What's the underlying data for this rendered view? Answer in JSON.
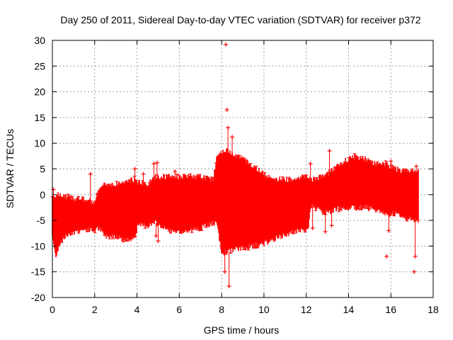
{
  "chart_data": {
    "type": "scatter",
    "title": "Day 250 of 2011, Sidereal Day-to-day VTEC variation (SDTVAR) for receiver p372",
    "xlabel": "GPS time / hours",
    "ylabel": "SDTVAR / TECUs",
    "xlim": [
      0,
      18
    ],
    "ylim": [
      -20,
      30
    ],
    "x_ticks": [
      0,
      2,
      4,
      6,
      8,
      10,
      12,
      14,
      16,
      18
    ],
    "y_ticks": [
      -20,
      -15,
      -10,
      -5,
      0,
      5,
      10,
      15,
      20,
      25,
      30
    ],
    "x_tick_labels": [
      "0",
      "2",
      "4",
      "6",
      "8",
      "10",
      "12",
      "14",
      "16",
      "18"
    ],
    "y_tick_labels": [
      "-20",
      "-15",
      "-10",
      "-5",
      "0",
      "5",
      "10",
      "15",
      "20",
      "25",
      "30"
    ],
    "grid": true,
    "marker": "+",
    "color": "#ff0000",
    "series": [
      {
        "name": "SDTVAR p372",
        "envelope": [
          {
            "x": 0.0,
            "lo": -8.0,
            "hi": -0.5
          },
          {
            "x": 0.15,
            "lo": -12.0,
            "hi": 0.0
          },
          {
            "x": 0.4,
            "lo": -9.0,
            "hi": -0.2
          },
          {
            "x": 0.8,
            "lo": -7.5,
            "hi": -0.5
          },
          {
            "x": 1.2,
            "lo": -7.0,
            "hi": -0.8
          },
          {
            "x": 1.6,
            "lo": -6.8,
            "hi": -1.0
          },
          {
            "x": 2.0,
            "lo": -7.0,
            "hi": -1.5
          },
          {
            "x": 2.2,
            "lo": -6.5,
            "hi": 1.0
          },
          {
            "x": 2.5,
            "lo": -8.0,
            "hi": 2.0
          },
          {
            "x": 3.0,
            "lo": -8.0,
            "hi": 2.0
          },
          {
            "x": 3.5,
            "lo": -9.0,
            "hi": 2.5
          },
          {
            "x": 3.9,
            "lo": -8.0,
            "hi": 3.0
          },
          {
            "x": 4.05,
            "lo": -6.0,
            "hi": 2.5
          },
          {
            "x": 4.5,
            "lo": -6.0,
            "hi": 2.0
          },
          {
            "x": 4.9,
            "lo": -5.5,
            "hi": 3.5
          },
          {
            "x": 5.3,
            "lo": -6.5,
            "hi": 3.5
          },
          {
            "x": 5.8,
            "lo": -7.5,
            "hi": 3.5
          },
          {
            "x": 6.5,
            "lo": -7.0,
            "hi": 3.5
          },
          {
            "x": 7.0,
            "lo": -6.5,
            "hi": 3.5
          },
          {
            "x": 7.6,
            "lo": -5.5,
            "hi": 3.0
          },
          {
            "x": 7.8,
            "lo": -6.0,
            "hi": 8.0
          },
          {
            "x": 8.0,
            "lo": -11.5,
            "hi": 8.5
          },
          {
            "x": 8.3,
            "lo": -11.0,
            "hi": 8.5
          },
          {
            "x": 8.8,
            "lo": -10.5,
            "hi": 7.5
          },
          {
            "x": 9.5,
            "lo": -10.0,
            "hi": 5.5
          },
          {
            "x": 10.0,
            "lo": -9.5,
            "hi": 4.0
          },
          {
            "x": 10.6,
            "lo": -8.5,
            "hi": 3.0
          },
          {
            "x": 11.2,
            "lo": -7.5,
            "hi": 3.0
          },
          {
            "x": 11.8,
            "lo": -7.0,
            "hi": 3.5
          },
          {
            "x": 12.1,
            "lo": -7.0,
            "hi": 3.5
          },
          {
            "x": 12.2,
            "lo": -2.0,
            "hi": 3.0
          },
          {
            "x": 12.8,
            "lo": -3.5,
            "hi": 3.5
          },
          {
            "x": 13.3,
            "lo": -3.0,
            "hi": 5.0
          },
          {
            "x": 13.8,
            "lo": -2.5,
            "hi": 6.5
          },
          {
            "x": 14.3,
            "lo": -2.5,
            "hi": 7.5
          },
          {
            "x": 14.8,
            "lo": -2.5,
            "hi": 7.0
          },
          {
            "x": 15.3,
            "lo": -3.0,
            "hi": 6.0
          },
          {
            "x": 15.8,
            "lo": -4.0,
            "hi": 6.0
          },
          {
            "x": 16.2,
            "lo": -3.5,
            "hi": 5.0
          },
          {
            "x": 16.7,
            "lo": -4.5,
            "hi": 4.5
          },
          {
            "x": 17.3,
            "lo": -5.0,
            "hi": 4.5
          }
        ],
        "outliers": [
          {
            "x": 0.05,
            "y": 1.0
          },
          {
            "x": 1.8,
            "y": 4.0
          },
          {
            "x": 3.9,
            "y": 5.0
          },
          {
            "x": 4.3,
            "y": 4.0
          },
          {
            "x": 4.8,
            "y": 6.0
          },
          {
            "x": 4.95,
            "y": 6.2
          },
          {
            "x": 4.9,
            "y": -8.0
          },
          {
            "x": 5.0,
            "y": -9.0
          },
          {
            "x": 5.8,
            "y": 4.5
          },
          {
            "x": 8.15,
            "y": -15.0
          },
          {
            "x": 8.2,
            "y": 29.2
          },
          {
            "x": 8.25,
            "y": 16.5
          },
          {
            "x": 8.3,
            "y": 13.0
          },
          {
            "x": 8.35,
            "y": -17.8
          },
          {
            "x": 8.5,
            "y": 11.2
          },
          {
            "x": 12.2,
            "y": 6.0
          },
          {
            "x": 12.3,
            "y": -6.5
          },
          {
            "x": 12.9,
            "y": -7.2
          },
          {
            "x": 13.2,
            "y": -6.0
          },
          {
            "x": 13.1,
            "y": 8.5
          },
          {
            "x": 15.8,
            "y": -12.0
          },
          {
            "x": 15.9,
            "y": -7.0
          },
          {
            "x": 16.0,
            "y": 6.5
          },
          {
            "x": 17.1,
            "y": -15.0
          },
          {
            "x": 17.15,
            "y": -12.0
          },
          {
            "x": 17.2,
            "y": 5.5
          }
        ]
      }
    ]
  }
}
